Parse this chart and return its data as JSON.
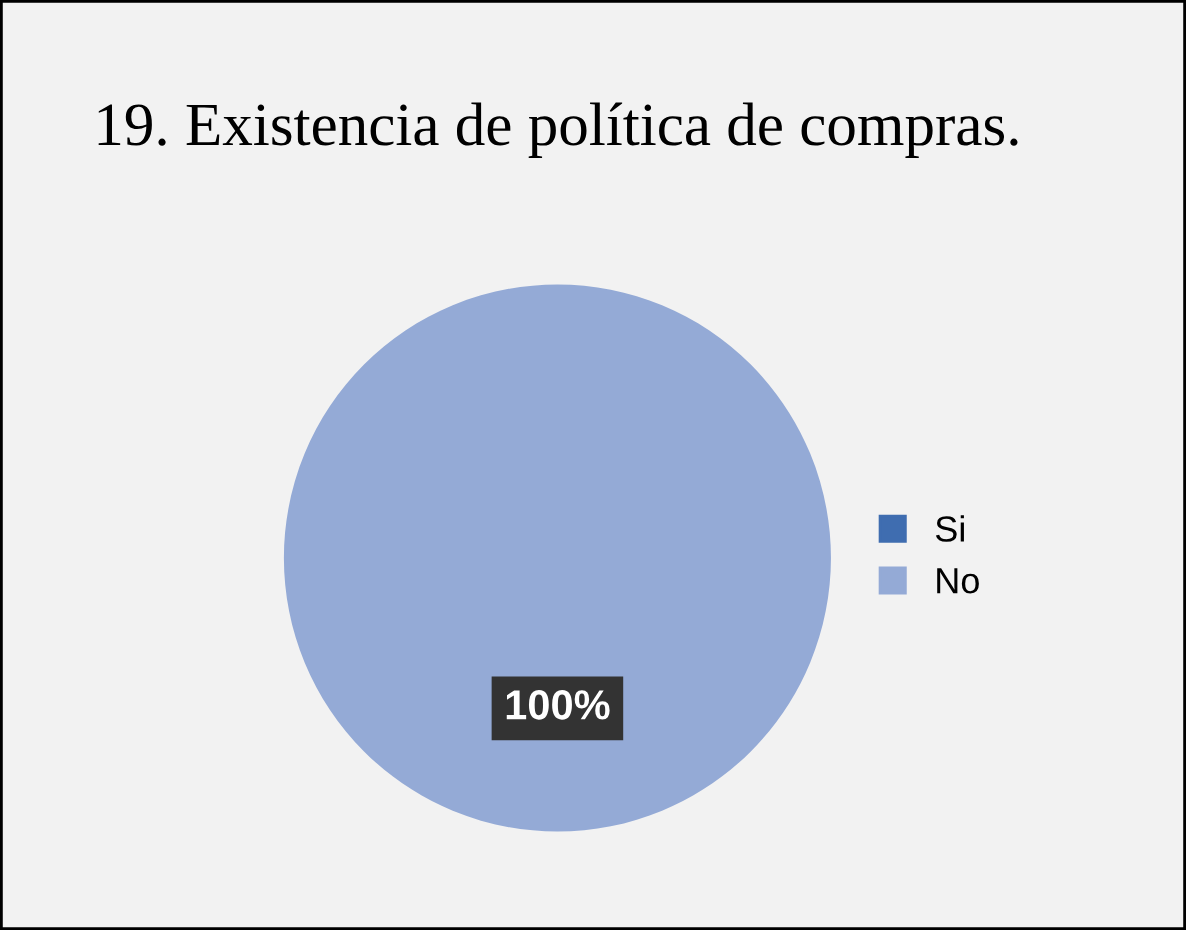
{
  "chart_data": {
    "type": "pie",
    "title": "19. Existencia de política de compras.",
    "categories": [
      "Si",
      "No"
    ],
    "values": [
      0,
      100
    ],
    "colors": [
      "#3f6db0",
      "#94aad6"
    ],
    "value_labels": [
      null,
      "100%"
    ],
    "legend": "right"
  }
}
